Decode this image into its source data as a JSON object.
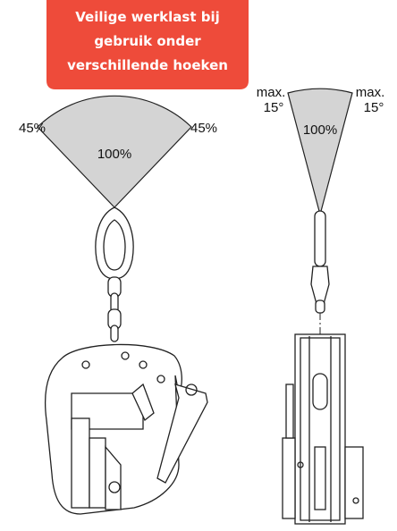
{
  "header": {
    "lines": [
      "Veilige werklast bij",
      "gebruik onder",
      "verschillende hoeken"
    ]
  },
  "left_diagram": {
    "angle_left": "45%",
    "angle_right": "45%",
    "center": "100%"
  },
  "right_diagram": {
    "left_max": "max.",
    "left_angle": "15°",
    "right_max": "max.",
    "right_angle": "15°",
    "center": "100%"
  }
}
